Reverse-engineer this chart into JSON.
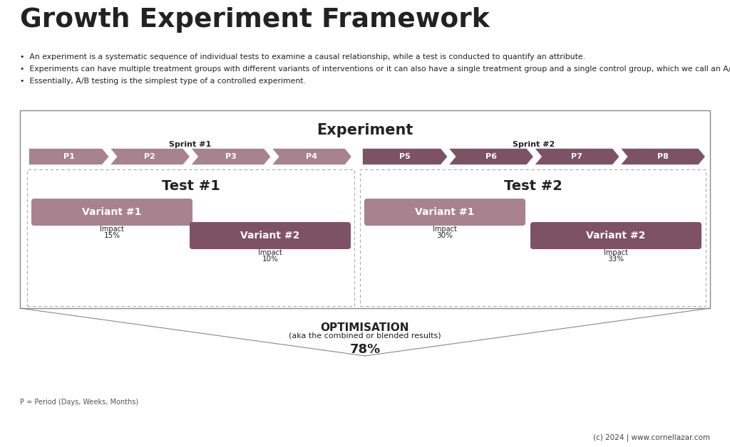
{
  "title": "Growth Experiment Framework",
  "bullets": [
    "An experiment is a systematic sequence of individual tests to examine a causal relationship, while a test is conducted to quantify an attribute.",
    "Experiments can have multiple treatment groups with different variants of interventions or it can also have a single treatment group and a single control group, which we call an A/B test.",
    "Essentially, A/B testing is the simplest type of a controlled experiment."
  ],
  "experiment_label": "Experiment",
  "sprint1_label": "Sprint #1",
  "sprint2_label": "Sprint #2",
  "periods_sprint1": [
    "P1",
    "P2",
    "P3",
    "P4"
  ],
  "periods_sprint2": [
    "P5",
    "P6",
    "P7",
    "P8"
  ],
  "period_color_light": "#a8828f",
  "period_color_dark": "#7d5265",
  "test1_label": "Test #1",
  "test2_label": "Test #2",
  "variant_color_light": "#a8828f",
  "variant_color_dark": "#7d5265",
  "test1_variant1_label": "Variant #1",
  "test1_variant1_impact": "15%",
  "test1_variant2_label": "Variant #2",
  "test1_variant2_impact": "10%",
  "test2_variant1_label": "Variant #1",
  "test2_variant1_impact": "30%",
  "test2_variant2_label": "Variant #2",
  "test2_variant2_impact": "33%",
  "optimisation_label": "OPTIMISATION",
  "optimisation_sub": "(aka the combined or blended results)",
  "optimisation_value": "78%",
  "footer_note": "P = Period (Days, Weeks, Months)",
  "copyright": "(c) 2024 | www.cornellazar.com",
  "bg_color": "#ffffff",
  "outer_box_color": "#888888",
  "dashed_box_color": "#aaaaaa",
  "text_color": "#222222"
}
